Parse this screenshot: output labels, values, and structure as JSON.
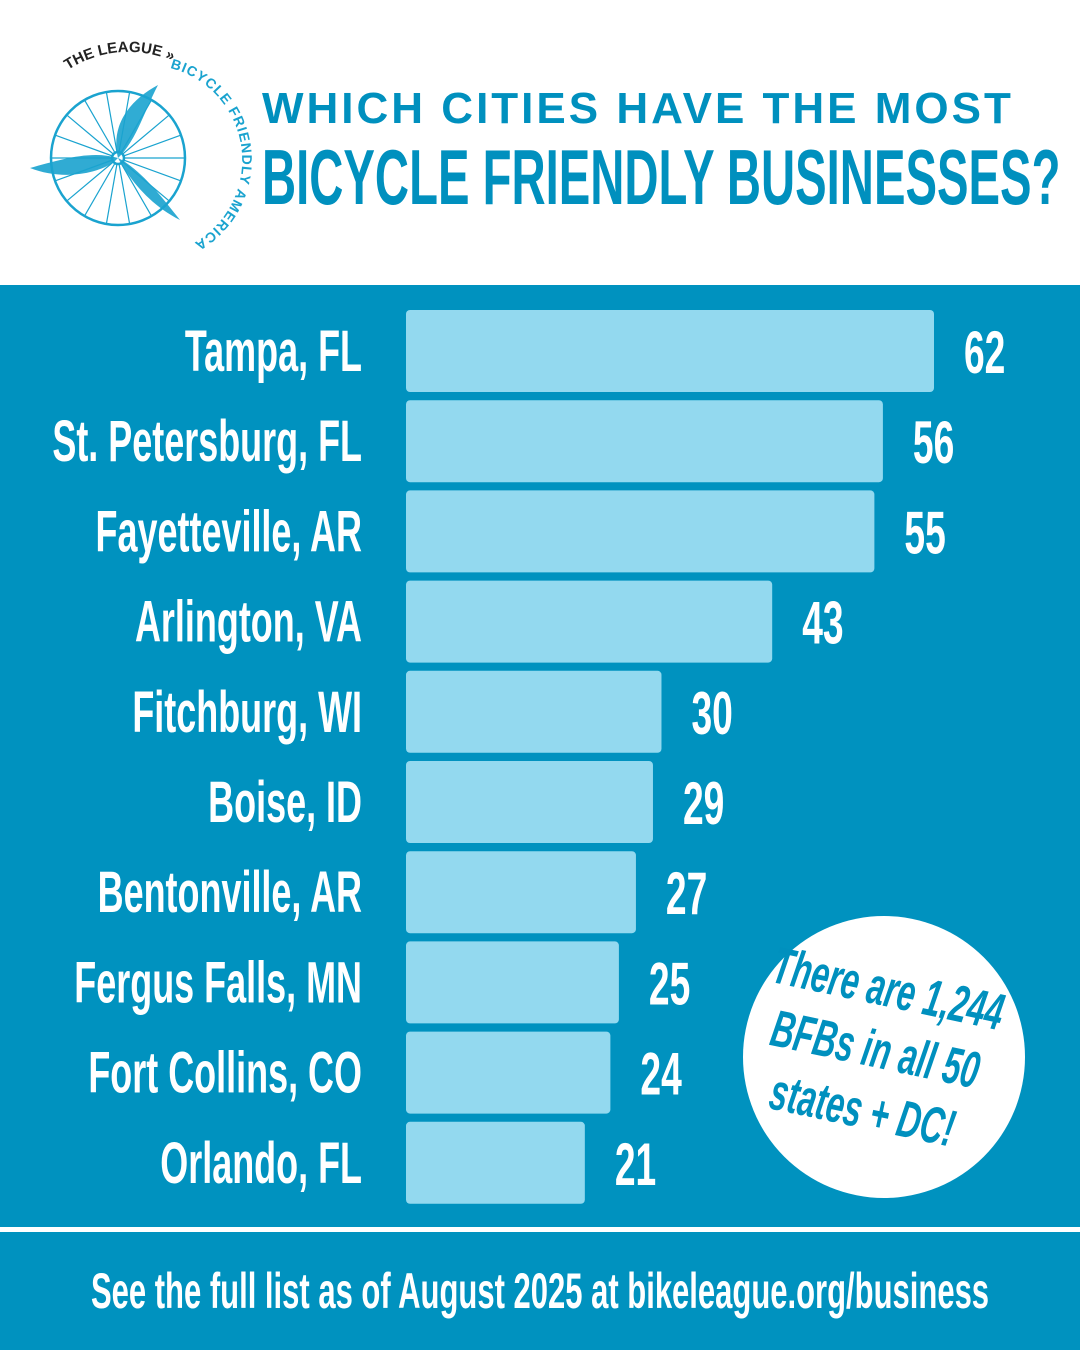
{
  "logo": {
    "text_top": "THE LEAGUE »",
    "text_arc": "BICYCLE FRIENDLY AMERICA"
  },
  "header": {
    "line1": "WHICH CITIES HAVE THE MOST",
    "line2": "BICYCLE FRIENDLY BUSINESSES?"
  },
  "colors": {
    "title": "#0090be",
    "panel": "#0092bf",
    "bar": "#93d9ef",
    "text": "#ffffff"
  },
  "chart_data": {
    "type": "bar",
    "orientation": "horizontal",
    "categories": [
      "Tampa, FL",
      "St. Petersburg, FL",
      "Fayetteville, AR",
      "Arlington, VA",
      "Fitchburg, WI",
      "Boise, ID",
      "Bentonville, AR",
      "Fergus Falls, MN",
      "Fort Collins, CO",
      "Orlando, FL"
    ],
    "values": [
      62,
      56,
      55,
      43,
      30,
      29,
      27,
      25,
      24,
      21
    ],
    "data_labels": [
      "62",
      "56",
      "55",
      "43",
      "30",
      "29",
      "27",
      "25",
      "24",
      "21"
    ],
    "grid": false
  },
  "callout": {
    "lines": [
      "There are 1,244",
      "BFBs in all 50",
      "states + DC!"
    ]
  },
  "footer": {
    "text": "See the full list as of August 2025 at bikeleague.org/business"
  }
}
